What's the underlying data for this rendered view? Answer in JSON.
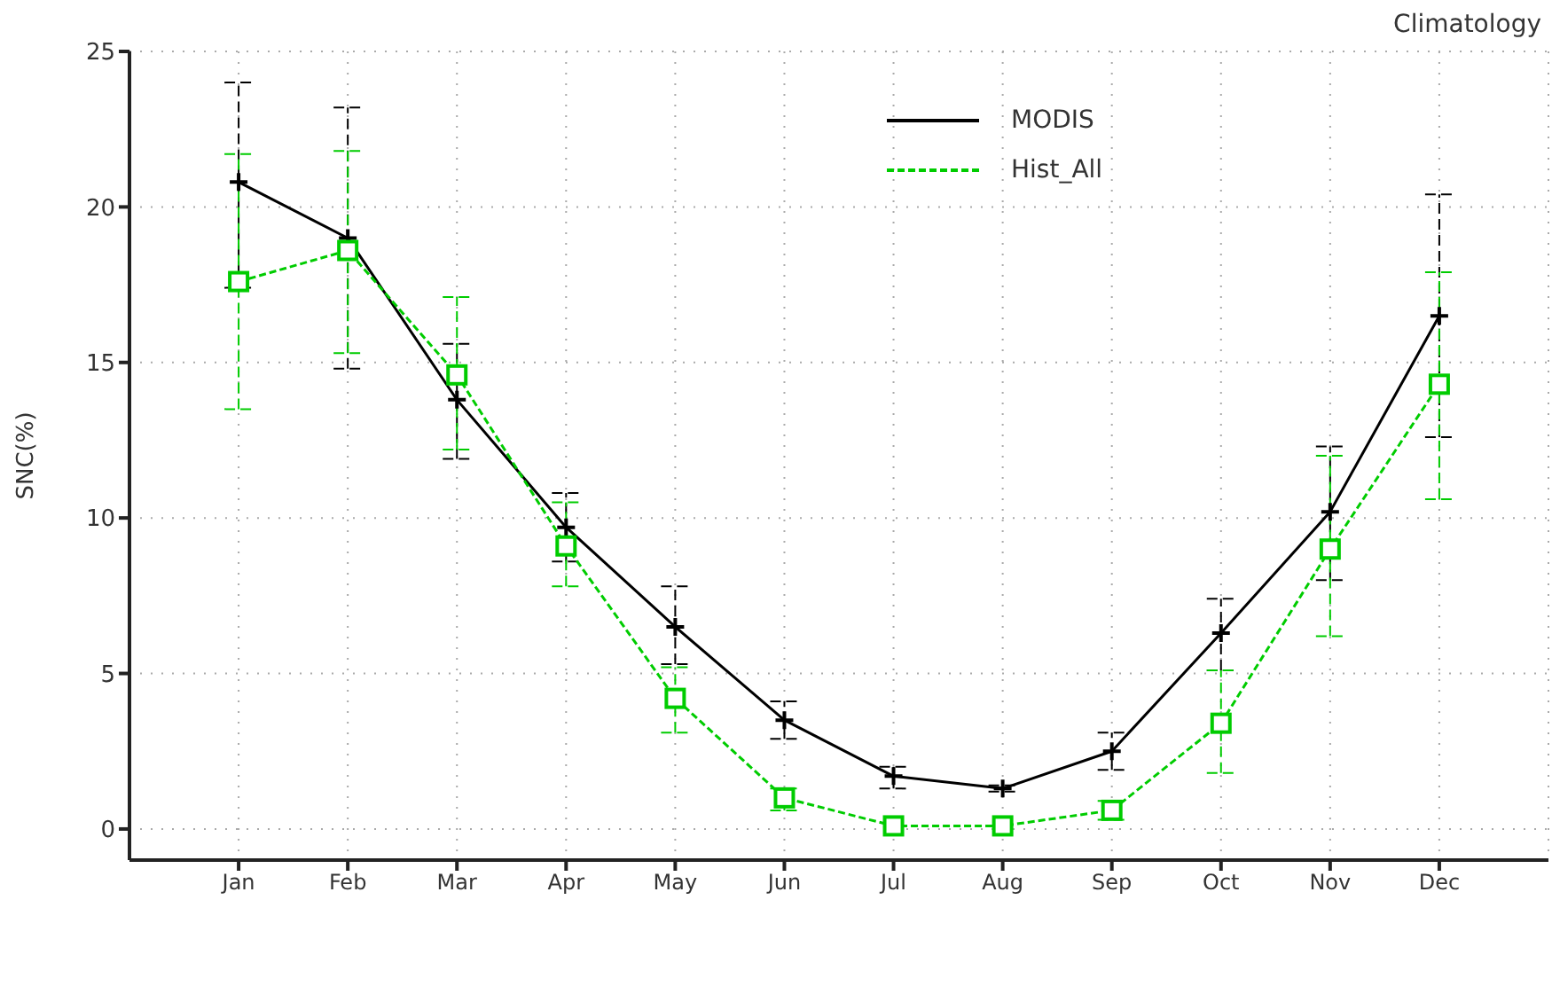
{
  "chart_data": {
    "type": "line",
    "title": "Climatology",
    "ylabel": "SNC(%)",
    "categories": [
      "Jan",
      "Feb",
      "Mar",
      "Apr",
      "May",
      "Jun",
      "Jul",
      "Aug",
      "Sep",
      "Oct",
      "Nov",
      "Dec"
    ],
    "series": [
      {
        "name": "MODIS",
        "color": "#000000",
        "marker": "cross",
        "line_style": "solid",
        "values": [
          20.8,
          19.0,
          13.8,
          9.7,
          6.5,
          3.5,
          1.7,
          1.3,
          2.5,
          6.3,
          10.2,
          16.5
        ],
        "errors": [
          [
            17.4,
            24.0
          ],
          [
            14.8,
            23.2
          ],
          [
            11.9,
            15.6
          ],
          [
            8.6,
            10.8
          ],
          [
            5.3,
            7.8
          ],
          [
            2.9,
            4.1
          ],
          [
            1.3,
            2.0
          ],
          [
            1.2,
            1.4
          ],
          [
            1.9,
            3.1
          ],
          [
            5.1,
            7.4
          ],
          [
            8.0,
            12.3
          ],
          [
            12.6,
            20.4
          ]
        ]
      },
      {
        "name": "Hist_All",
        "color": "#00cc00",
        "marker": "square",
        "line_style": "dashed",
        "values": [
          17.6,
          18.6,
          14.6,
          9.1,
          4.2,
          1.0,
          0.1,
          0.1,
          0.6,
          3.4,
          9.0,
          14.3
        ],
        "errors": [
          [
            13.5,
            21.7
          ],
          [
            15.3,
            21.8
          ],
          [
            12.2,
            17.1
          ],
          [
            7.8,
            10.5
          ],
          [
            3.1,
            5.2
          ],
          [
            0.6,
            1.3
          ],
          null,
          null,
          [
            0.3,
            0.9
          ],
          [
            1.8,
            5.1
          ],
          [
            6.2,
            12.0
          ],
          [
            10.6,
            17.9
          ]
        ]
      }
    ],
    "ylim": [
      -1,
      25
    ],
    "yticks": [
      0,
      5,
      10,
      15,
      20,
      25
    ],
    "grid": true,
    "legend": "top"
  }
}
